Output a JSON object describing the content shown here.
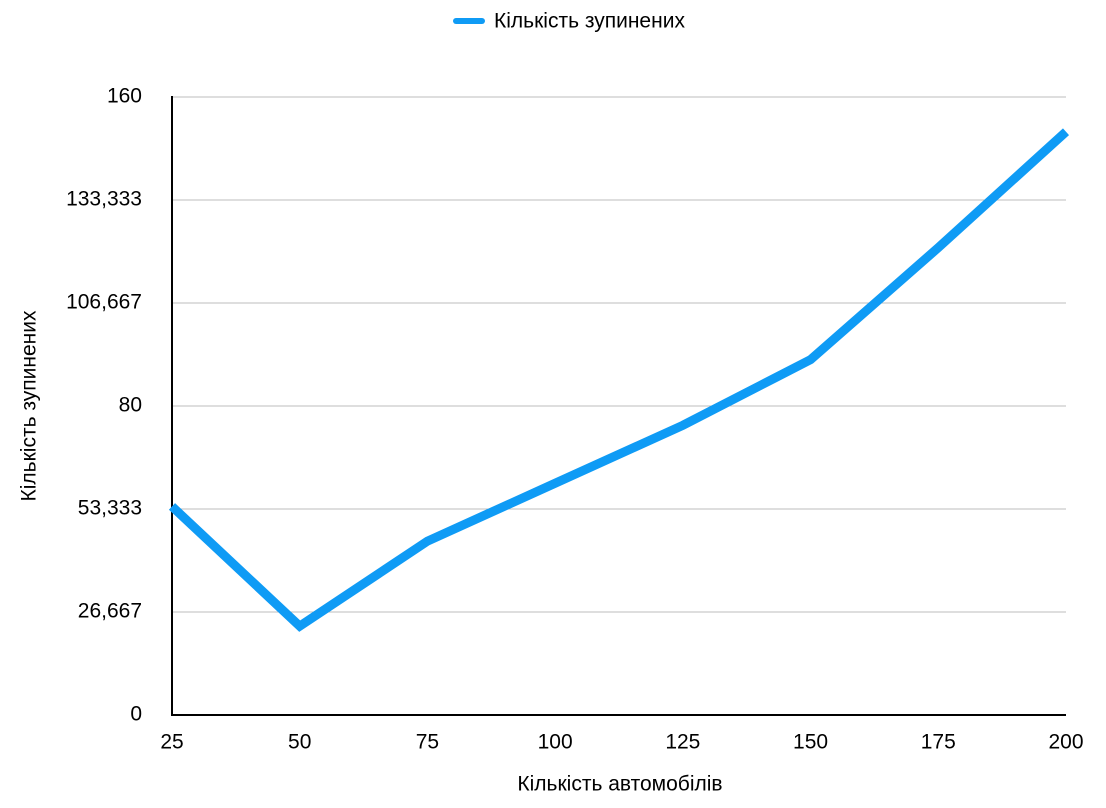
{
  "chart_data": {
    "type": "line",
    "x_label": "Кількість автомобілів",
    "y_label": "Кількість зупинених",
    "x": [
      25,
      50,
      75,
      100,
      125,
      150,
      175,
      200
    ],
    "series": [
      {
        "name": "Кількість зупинених",
        "color": "#0f9bf5",
        "values": [
          54,
          23,
          45,
          60,
          75,
          92,
          121,
          151
        ]
      }
    ],
    "xlim": [
      25,
      200
    ],
    "xticks": [
      25,
      50,
      75,
      100,
      125,
      150,
      175,
      200
    ],
    "ylim": [
      0,
      160
    ],
    "yticks": [
      0,
      {
        "value": 26.667,
        "label": "26,667"
      },
      {
        "value": 53.333,
        "label": "53,333"
      },
      80,
      {
        "value": 106.667,
        "label": "106,667"
      },
      {
        "value": 133.333,
        "label": "133,333"
      },
      160
    ],
    "grid": true,
    "legend": "top"
  }
}
